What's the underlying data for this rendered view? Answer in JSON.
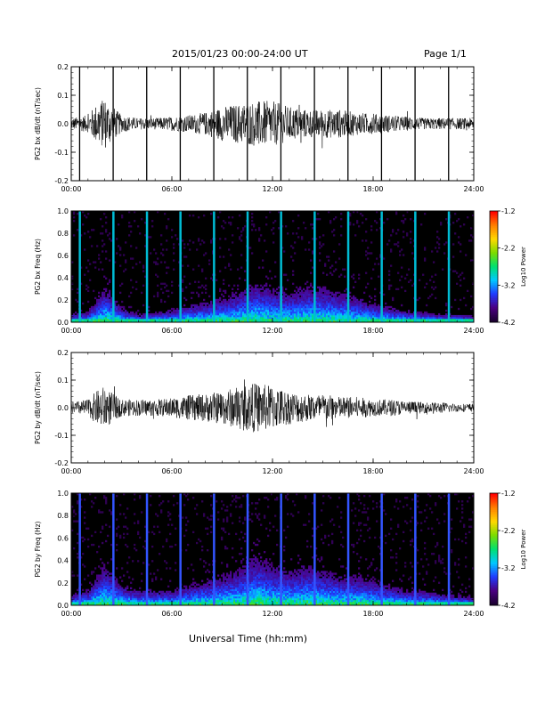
{
  "header": {
    "title": "2015/01/23  00:00-24:00 UT",
    "page": "Page 1/1"
  },
  "footer": {
    "xlabel": "Universal Time (hh:mm)"
  },
  "colors": {
    "background": "#000000",
    "trace": "#000000",
    "colormap": [
      "#1a0030",
      "#4b0082",
      "#1f3cff",
      "#00c8ff",
      "#00e070",
      "#7bdc00",
      "#ffd800",
      "#ff8000",
      "#ff0000"
    ]
  },
  "chart_data": [
    {
      "type": "line",
      "ylabel": "PG2 bx dB/dt (nT/sec)",
      "xlim": [
        0,
        24
      ],
      "ylim": [
        -0.2,
        0.2
      ],
      "xticks": [
        "00:00",
        "06:00",
        "12:00",
        "18:00",
        "24:00"
      ],
      "yticks": [
        "-0.2",
        "-0.1",
        "0.0",
        "0.1",
        "0.2"
      ],
      "calibration_spikes_hours": [
        0.5,
        2.5,
        4.5,
        6.5,
        8.5,
        10.5,
        12.5,
        14.5,
        16.5,
        18.5,
        20.5,
        22.5
      ],
      "envelope": {
        "hours": [
          0,
          1,
          1.5,
          2,
          2.5,
          3,
          4,
          5,
          6,
          7,
          8,
          9,
          10,
          11,
          12,
          13,
          14,
          15,
          16,
          17,
          18,
          19,
          20,
          21,
          22,
          23,
          24
        ],
        "amplitude": [
          0.02,
          0.03,
          0.07,
          0.09,
          0.06,
          0.03,
          0.02,
          0.02,
          0.025,
          0.03,
          0.04,
          0.06,
          0.07,
          0.08,
          0.08,
          0.06,
          0.05,
          0.05,
          0.05,
          0.04,
          0.035,
          0.03,
          0.025,
          0.02,
          0.02,
          0.02,
          0.02
        ]
      }
    },
    {
      "type": "heatmap",
      "ylabel": "PG2 bx Freq (Hz)",
      "xlim": [
        0,
        24
      ],
      "ylim": [
        0,
        1.0
      ],
      "xticks": [
        "00:00",
        "06:00",
        "12:00",
        "18:00",
        "24:00"
      ],
      "yticks": [
        "0.0",
        "0.2",
        "0.4",
        "0.6",
        "0.8",
        "1.0"
      ],
      "colorbar": {
        "label": "Log10 Power",
        "range": [
          -4.2,
          -1.2
        ],
        "ticks": [
          "-1.2",
          "-2.2",
          "-3.2",
          "-4.2"
        ]
      },
      "calibration_lines_hours": [
        0.5,
        2.5,
        4.5,
        6.5,
        8.5,
        10.5,
        12.5,
        14.5,
        16.5,
        18.5,
        20.5,
        22.5
      ],
      "activity": {
        "hours": [
          0,
          1,
          2,
          3,
          4,
          5,
          6,
          7,
          8,
          9,
          10,
          11,
          12,
          13,
          14,
          15,
          16,
          17,
          18,
          19,
          20,
          21,
          22,
          23,
          24
        ],
        "max_freq_hz": [
          0.08,
          0.1,
          0.35,
          0.15,
          0.08,
          0.1,
          0.12,
          0.18,
          0.2,
          0.25,
          0.3,
          0.4,
          0.35,
          0.3,
          0.35,
          0.35,
          0.3,
          0.25,
          0.2,
          0.15,
          0.12,
          0.1,
          0.08,
          0.08,
          0.06
        ]
      }
    },
    {
      "type": "line",
      "ylabel": "PG2 by dB/dt (nT/sec)",
      "xlim": [
        0,
        24
      ],
      "ylim": [
        -0.2,
        0.2
      ],
      "xticks": [
        "00:00",
        "06:00",
        "12:00",
        "18:00",
        "24:00"
      ],
      "yticks": [
        "-0.2",
        "-0.1",
        "0.0",
        "0.1",
        "0.2"
      ],
      "calibration_spikes_hours": [],
      "envelope": {
        "hours": [
          0,
          1,
          1.5,
          2,
          2.5,
          3,
          4,
          5,
          6,
          7,
          8,
          9,
          10,
          11,
          12,
          13,
          14,
          15,
          16,
          17,
          18,
          19,
          20,
          21,
          22,
          23,
          24
        ],
        "amplitude": [
          0.02,
          0.03,
          0.06,
          0.08,
          0.05,
          0.03,
          0.03,
          0.03,
          0.035,
          0.045,
          0.05,
          0.06,
          0.08,
          0.09,
          0.08,
          0.06,
          0.05,
          0.05,
          0.04,
          0.04,
          0.03,
          0.03,
          0.025,
          0.02,
          0.02,
          0.015,
          0.015
        ]
      }
    },
    {
      "type": "heatmap",
      "ylabel": "PG2 by Freq (Hz)",
      "xlim": [
        0,
        24
      ],
      "ylim": [
        0,
        1.0
      ],
      "xticks": [
        "00:00",
        "06:00",
        "12:00",
        "18:00",
        "24:00"
      ],
      "yticks": [
        "0.0",
        "0.2",
        "0.4",
        "0.6",
        "0.8",
        "1.0"
      ],
      "colorbar": {
        "label": "Log10 Power",
        "range": [
          -4.2,
          -1.2
        ],
        "ticks": [
          "-1.2",
          "-2.2",
          "-3.2",
          "-4.2"
        ]
      },
      "calibration_lines_hours": [
        0.5,
        2.5,
        4.5,
        6.5,
        8.5,
        10.5,
        12.5,
        14.5,
        16.5,
        18.5,
        20.5,
        22.5
      ],
      "activity": {
        "hours": [
          0,
          1,
          2,
          3,
          4,
          5,
          6,
          7,
          8,
          9,
          10,
          11,
          12,
          13,
          14,
          15,
          16,
          17,
          18,
          19,
          20,
          21,
          22,
          23,
          24
        ],
        "max_freq_hz": [
          0.1,
          0.15,
          0.4,
          0.2,
          0.15,
          0.15,
          0.15,
          0.2,
          0.25,
          0.3,
          0.35,
          0.5,
          0.4,
          0.35,
          0.4,
          0.35,
          0.3,
          0.3,
          0.25,
          0.2,
          0.15,
          0.15,
          0.12,
          0.1,
          0.08
        ]
      }
    }
  ]
}
